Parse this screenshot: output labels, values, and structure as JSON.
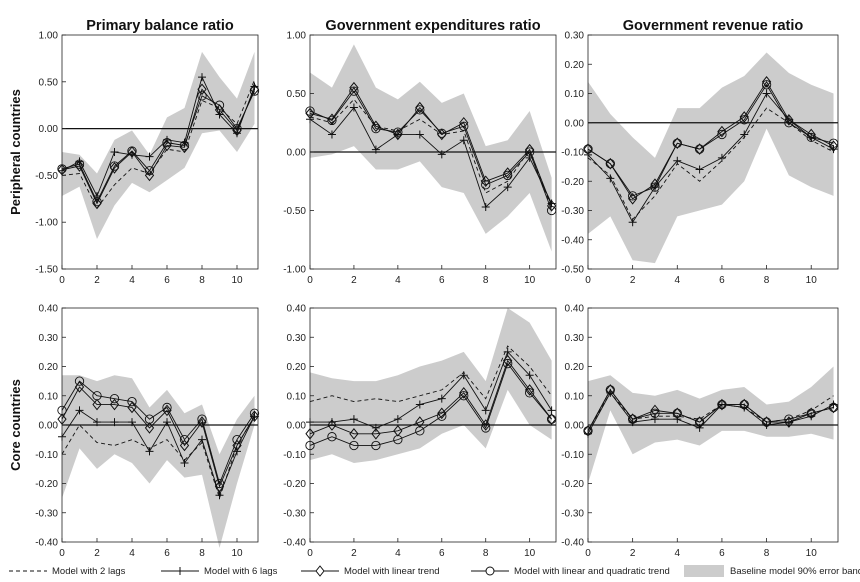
{
  "chart_data": {
    "type": "line",
    "col_titles": [
      "Primary balance ratio",
      "Government expenditures ratio",
      "Government revenue ratio"
    ],
    "row_labels": [
      "Peripheral countries",
      "Core countries"
    ],
    "x": [
      0,
      1,
      2,
      3,
      4,
      5,
      6,
      7,
      8,
      9,
      10,
      11
    ],
    "xticks": [
      "0",
      "2",
      "4",
      "6",
      "8",
      "10"
    ],
    "xlim": [
      0,
      11.2
    ],
    "series_names": [
      "Model with 2 lags",
      "Model with 6 lags",
      "Model with linear trend",
      "Model with linear and quadratic trend",
      "Baseline model 90% error band"
    ],
    "panels": [
      {
        "id": "peripheral-primary-balance",
        "ylim": [
          -1.5,
          1.0
        ],
        "yticks": [
          "-1.50",
          "-1.00",
          "-0.50",
          "0.00",
          "0.50",
          "1.00"
        ],
        "band_low": [
          -0.72,
          -0.62,
          -1.18,
          -0.82,
          -0.58,
          -0.68,
          -0.55,
          -0.42,
          -0.05,
          -0.02,
          -0.25,
          0.05
        ],
        "band_high": [
          -0.25,
          -0.28,
          -0.48,
          -0.12,
          -0.02,
          -0.28,
          0.12,
          0.22,
          0.82,
          0.55,
          0.32,
          0.82
        ],
        "series": [
          {
            "name": "Model with 2 lags",
            "values": [
              -0.5,
              -0.48,
              -0.85,
              -0.6,
              -0.42,
              -0.48,
              -0.22,
              -0.25,
              0.3,
              0.22,
              0.05,
              0.52
            ]
          },
          {
            "name": "Model with 6 lags",
            "values": [
              -0.45,
              -0.35,
              -0.72,
              -0.25,
              -0.28,
              -0.3,
              -0.12,
              -0.15,
              0.55,
              0.15,
              -0.05,
              0.45
            ]
          },
          {
            "name": "Model with linear trend",
            "values": [
              -0.44,
              -0.4,
              -0.8,
              -0.42,
              -0.25,
              -0.5,
              -0.18,
              -0.2,
              0.42,
              0.2,
              -0.02,
              0.42
            ]
          },
          {
            "name": "Model with linear and quadratic trend",
            "values": [
              -0.43,
              -0.38,
              -0.78,
              -0.4,
              -0.24,
              -0.45,
              -0.15,
              -0.18,
              0.35,
              0.25,
              0.0,
              0.4
            ]
          }
        ]
      },
      {
        "id": "peripheral-expenditures",
        "ylim": [
          -1.0,
          1.0
        ],
        "yticks": [
          "-1.00",
          "-0.50",
          "0.00",
          "0.50",
          "1.00"
        ],
        "band_low": [
          -0.05,
          -0.02,
          0.05,
          -0.15,
          -0.15,
          -0.08,
          -0.3,
          -0.35,
          -0.7,
          -0.55,
          -0.35,
          -0.85
        ],
        "band_high": [
          0.68,
          0.55,
          0.92,
          0.55,
          0.45,
          0.6,
          0.42,
          0.5,
          0.05,
          0.1,
          0.35,
          -0.22
        ],
        "series": [
          {
            "name": "Model with 2 lags",
            "values": [
              0.3,
              0.25,
              0.45,
              0.22,
              0.18,
              0.28,
              0.15,
              0.18,
              -0.35,
              -0.25,
              0.02,
              -0.48
            ]
          },
          {
            "name": "Model with 6 lags",
            "values": [
              0.28,
              0.15,
              0.38,
              0.02,
              0.15,
              0.15,
              -0.02,
              0.1,
              -0.47,
              -0.3,
              -0.05,
              -0.44
            ]
          },
          {
            "name": "Model with linear trend",
            "values": [
              0.33,
              0.28,
              0.55,
              0.22,
              0.15,
              0.38,
              0.15,
              0.25,
              -0.25,
              -0.18,
              0.02,
              -0.46
            ]
          },
          {
            "name": "Model with linear and quadratic trend",
            "values": [
              0.35,
              0.27,
              0.52,
              0.2,
              0.17,
              0.36,
              0.16,
              0.22,
              -0.28,
              -0.2,
              0.0,
              -0.5
            ]
          }
        ]
      },
      {
        "id": "peripheral-revenue",
        "ylim": [
          -0.5,
          0.3
        ],
        "yticks": [
          "-0.50",
          "-0.40",
          "-0.30",
          "-0.20",
          "-0.10",
          "0.00",
          "0.10",
          "0.20",
          "0.30"
        ],
        "band_low": [
          -0.38,
          -0.32,
          -0.47,
          -0.48,
          -0.32,
          -0.3,
          -0.28,
          -0.2,
          -0.02,
          -0.18,
          -0.22,
          -0.25
        ],
        "band_high": [
          0.14,
          0.03,
          -0.05,
          -0.12,
          0.05,
          0.05,
          0.12,
          0.16,
          0.24,
          0.17,
          0.13,
          0.1
        ],
        "series": [
          {
            "name": "Model with 2 lags",
            "values": [
              -0.12,
              -0.18,
              -0.33,
              -0.25,
              -0.14,
              -0.2,
              -0.13,
              -0.05,
              0.05,
              0.0,
              -0.06,
              -0.1
            ]
          },
          {
            "name": "Model with 6 lags",
            "values": [
              -0.11,
              -0.19,
              -0.34,
              -0.22,
              -0.13,
              -0.16,
              -0.12,
              -0.04,
              0.1,
              0.01,
              -0.05,
              -0.09
            ]
          },
          {
            "name": "Model with linear trend",
            "values": [
              -0.09,
              -0.14,
              -0.26,
              -0.21,
              -0.07,
              -0.09,
              -0.03,
              0.02,
              0.14,
              0.01,
              -0.04,
              -0.08
            ]
          },
          {
            "name": "Model with linear and quadratic trend",
            "values": [
              -0.09,
              -0.14,
              -0.25,
              -0.22,
              -0.07,
              -0.09,
              -0.04,
              0.01,
              0.13,
              0.0,
              -0.05,
              -0.07
            ]
          }
        ]
      },
      {
        "id": "core-primary-balance",
        "ylim": [
          -0.4,
          0.4
        ],
        "yticks": [
          "-0.40",
          "-0.30",
          "-0.20",
          "-0.10",
          "0.00",
          "0.10",
          "0.20",
          "0.30",
          "0.40"
        ],
        "band_low": [
          -0.25,
          -0.08,
          -0.15,
          -0.1,
          -0.13,
          -0.2,
          -0.12,
          -0.18,
          -0.17,
          -0.42,
          -0.2,
          0.0
        ],
        "band_high": [
          0.17,
          0.17,
          0.15,
          0.17,
          0.16,
          0.06,
          0.12,
          0.04,
          0.07,
          -0.1,
          0.02,
          0.1
        ],
        "series": [
          {
            "name": "Model with 2 lags",
            "values": [
              -0.1,
              0.0,
              -0.06,
              -0.07,
              -0.05,
              -0.08,
              -0.05,
              -0.12,
              -0.06,
              -0.25,
              -0.07,
              0.03
            ]
          },
          {
            "name": "Model with 6 lags",
            "values": [
              -0.04,
              0.05,
              0.01,
              0.01,
              0.01,
              -0.09,
              0.01,
              -0.13,
              -0.05,
              -0.24,
              -0.09,
              0.03
            ]
          },
          {
            "name": "Model with linear trend",
            "values": [
              0.02,
              0.13,
              0.07,
              0.07,
              0.06,
              -0.01,
              0.05,
              -0.07,
              0.01,
              -0.21,
              -0.07,
              0.03
            ]
          },
          {
            "name": "Model with linear and quadratic trend",
            "values": [
              0.05,
              0.15,
              0.1,
              0.09,
              0.08,
              0.02,
              0.06,
              -0.05,
              0.02,
              -0.2,
              -0.05,
              0.04
            ]
          }
        ]
      },
      {
        "id": "core-expenditures",
        "ylim": [
          -0.4,
          0.4
        ],
        "yticks": [
          "-0.40",
          "-0.30",
          "-0.20",
          "-0.10",
          "0.00",
          "0.10",
          "0.20",
          "0.30",
          "0.40"
        ],
        "band_low": [
          -0.12,
          -0.1,
          -0.13,
          -0.12,
          -0.1,
          -0.08,
          -0.03,
          0.0,
          -0.08,
          0.12,
          0.0,
          -0.05
        ],
        "band_high": [
          0.18,
          0.16,
          0.15,
          0.15,
          0.17,
          0.2,
          0.22,
          0.25,
          0.15,
          0.4,
          0.35,
          0.22
        ],
        "series": [
          {
            "name": "Model with 2 lags",
            "values": [
              0.08,
              0.1,
              0.08,
              0.09,
              0.08,
              0.1,
              0.12,
              0.18,
              0.09,
              0.27,
              0.2,
              0.1
            ]
          },
          {
            "name": "Model with 6 lags",
            "values": [
              0.01,
              0.01,
              0.02,
              -0.01,
              0.02,
              0.07,
              0.09,
              0.17,
              0.05,
              0.25,
              0.17,
              0.05
            ]
          },
          {
            "name": "Model with linear trend",
            "values": [
              -0.03,
              0.0,
              -0.03,
              -0.03,
              -0.02,
              0.01,
              0.04,
              0.11,
              0.0,
              0.22,
              0.12,
              0.02
            ]
          },
          {
            "name": "Model with linear and quadratic trend",
            "values": [
              -0.07,
              -0.04,
              -0.07,
              -0.07,
              -0.05,
              -0.02,
              0.03,
              0.1,
              -0.01,
              0.21,
              0.11,
              0.02
            ]
          }
        ]
      },
      {
        "id": "core-revenue",
        "ylim": [
          -0.4,
          0.4
        ],
        "yticks": [
          "-0.40",
          "-0.30",
          "-0.20",
          "-0.10",
          "0.00",
          "0.10",
          "0.20",
          "0.30",
          "0.40"
        ],
        "band_low": [
          -0.2,
          0.05,
          -0.1,
          -0.06,
          -0.05,
          -0.07,
          -0.02,
          -0.02,
          -0.04,
          -0.04,
          -0.03,
          -0.05
        ],
        "band_high": [
          0.15,
          0.17,
          0.11,
          0.1,
          0.12,
          0.09,
          0.12,
          0.13,
          0.07,
          0.08,
          0.13,
          0.2
        ],
        "series": [
          {
            "name": "Model with 2 lags",
            "values": [
              -0.02,
              0.11,
              0.02,
              0.03,
              0.03,
              0.02,
              0.07,
              0.06,
              0.01,
              0.02,
              0.05,
              0.1
            ]
          },
          {
            "name": "Model with 6 lags",
            "values": [
              -0.03,
              0.11,
              0.01,
              0.02,
              0.02,
              -0.01,
              0.07,
              0.06,
              0.0,
              0.01,
              0.03,
              0.07
            ]
          },
          {
            "name": "Model with linear trend",
            "values": [
              -0.02,
              0.12,
              0.02,
              0.05,
              0.04,
              0.01,
              0.07,
              0.07,
              0.01,
              0.01,
              0.04,
              0.06
            ]
          },
          {
            "name": "Model with linear and quadratic trend",
            "values": [
              -0.02,
              0.12,
              0.02,
              0.04,
              0.04,
              0.01,
              0.07,
              0.07,
              0.01,
              0.02,
              0.04,
              0.06
            ]
          }
        ]
      }
    ]
  },
  "legend": [
    {
      "key": "two-lags",
      "label": "Model with 2 lags"
    },
    {
      "key": "six-lags",
      "label": "Model with 6 lags"
    },
    {
      "key": "linear",
      "label": "Model with linear trend"
    },
    {
      "key": "quadratic",
      "label": "Model with linear and quadratic trend"
    },
    {
      "key": "band",
      "label": "Baseline model 90% error band"
    }
  ],
  "colors": {
    "band": "#cccccc",
    "line": "#111111"
  }
}
